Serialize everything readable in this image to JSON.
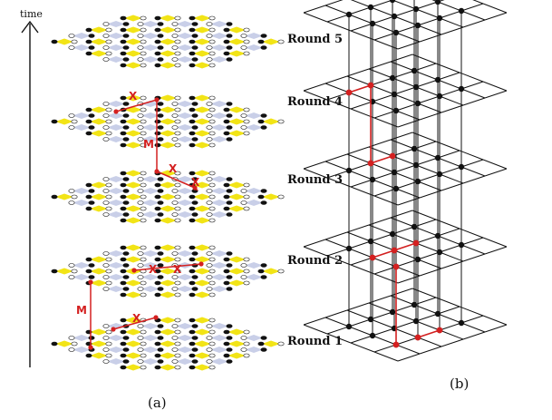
{
  "panel_a": {
    "axis_label": "time",
    "rounds": [
      "Round 5",
      "Round 4",
      "Round 3",
      "Round 2",
      "Round 1"
    ],
    "caption": "(a)",
    "markers": [
      "X",
      "X",
      "M",
      "X",
      "X",
      "X",
      "X",
      "M",
      "X"
    ]
  },
  "panel_b": {
    "caption": "(b)"
  },
  "colors": {
    "yellow": "#f2e416",
    "lilac": "#c9cfe8",
    "edge_red": "#d42020",
    "node_black": "#111111"
  }
}
